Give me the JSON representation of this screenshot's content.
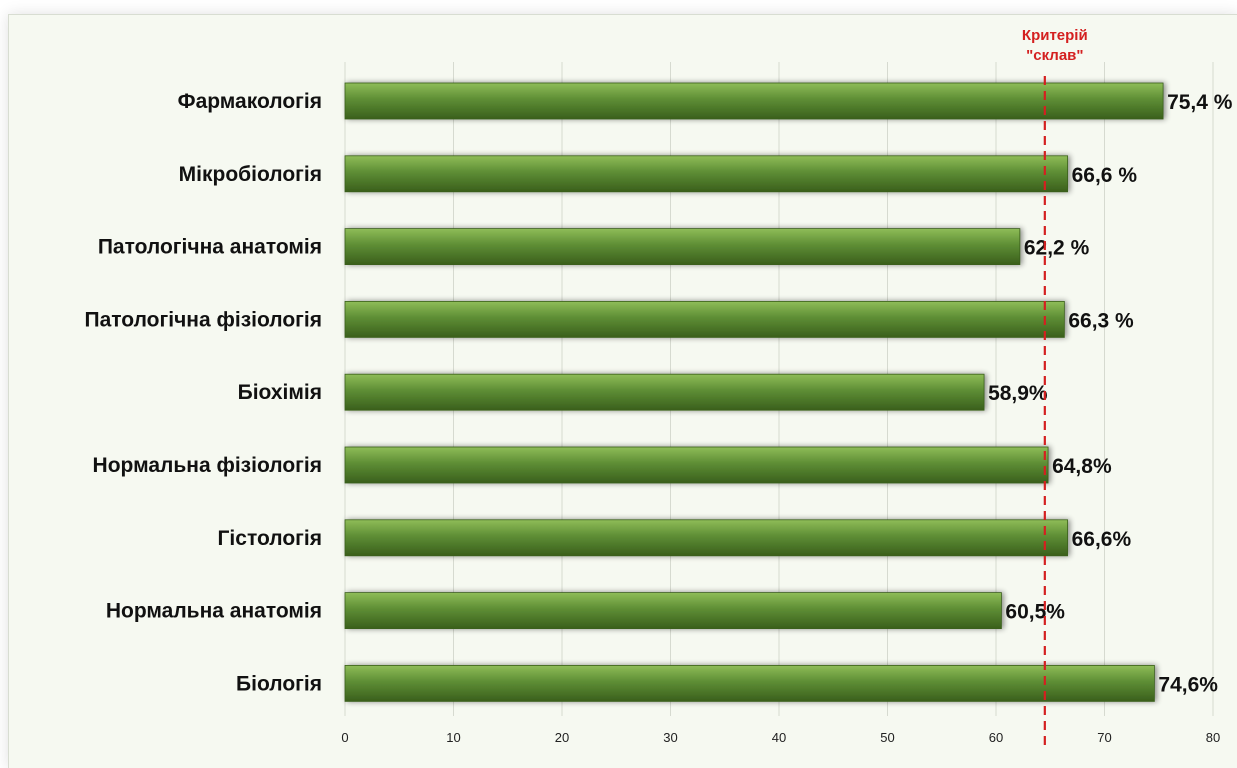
{
  "chart_data": {
    "type": "bar",
    "orientation": "horizontal",
    "categories": [
      "Фармакологія",
      "Мікробіологія",
      "Патологічна анатомія",
      "Патологічна фізіологія",
      "Біохімія",
      "Нормальна фізіологія",
      "Гістологія",
      "Нормальна анатомія",
      "Біологія"
    ],
    "values": [
      75.4,
      66.6,
      62.2,
      66.3,
      58.9,
      64.8,
      66.6,
      60.5,
      74.6
    ],
    "value_labels": [
      "75,4 %",
      "66,6 %",
      "62,2 %",
      "66,3 %",
      "58,9%",
      "64,8%",
      "66,6%",
      "60,5%",
      "74,6%"
    ],
    "xlim": [
      0,
      80
    ],
    "xticks": [
      0,
      10,
      20,
      30,
      40,
      50,
      60,
      70,
      80
    ],
    "grid": true,
    "title": "",
    "xlabel": "",
    "ylabel": "",
    "reference_line": {
      "value": 64.5,
      "label_line1": "Критерій",
      "label_line2": "\"склав\"",
      "color": "#d42020",
      "style": "dashed"
    },
    "colors": {
      "bar": "#5e8e35",
      "bar_dark": "#3a5f1c",
      "bar_light": "#8fbd58"
    }
  }
}
